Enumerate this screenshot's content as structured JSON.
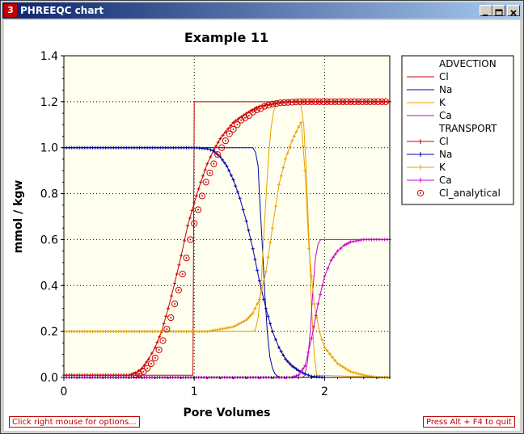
{
  "window": {
    "title": "PHREEQC chart",
    "icon_label": "3",
    "colors": {
      "titlebar": "#0a246a",
      "accent": "#c00000"
    }
  },
  "footer": {
    "options_hint": "Click right mouse for options...",
    "quit_hint": "Press Alt + F4 to quit"
  },
  "legend": {
    "entries": [
      {
        "label": "ADVECTION",
        "kind": "header"
      },
      {
        "label": "Cl",
        "color": "#cc0000",
        "marker": "none"
      },
      {
        "label": "Na",
        "color": "#0000aa",
        "marker": "none"
      },
      {
        "label": "K",
        "color": "#e8a000",
        "marker": "none"
      },
      {
        "label": "Ca",
        "color": "#cc00cc",
        "marker": "none"
      },
      {
        "label": "TRANSPORT",
        "kind": "header"
      },
      {
        "label": "Cl",
        "color": "#cc0000",
        "marker": "plus"
      },
      {
        "label": "Na",
        "color": "#0000aa",
        "marker": "plus"
      },
      {
        "label": "K",
        "color": "#e8a000",
        "marker": "plus"
      },
      {
        "label": "Ca",
        "color": "#cc00cc",
        "marker": "plus"
      },
      {
        "label": "Cl_analytical",
        "color": "#cc0000",
        "marker": "circle"
      }
    ]
  },
  "chart_data": {
    "type": "line",
    "title": "Example 11",
    "xlabel": "Pore Volumes",
    "ylabel": "mmol / kgw",
    "xlim": [
      0,
      2.5
    ],
    "ylim": [
      0,
      1.4
    ],
    "xticks": [
      0,
      1,
      2
    ],
    "yticks": [
      "0.0",
      "0.2",
      "0.4",
      "0.6",
      "0.8",
      "1.0",
      "1.2",
      "1.4"
    ],
    "grid": "dotted",
    "legend_position": "right",
    "background": "#fffff0",
    "series": [
      {
        "name": "Cl",
        "group": "ADVECTION",
        "color": "#cc0000",
        "marker": "none",
        "step": true,
        "x": [
          0,
          0.99,
          1.0,
          2.5
        ],
        "y": [
          0.01,
          0.01,
          1.2,
          1.2
        ]
      },
      {
        "name": "Na",
        "group": "ADVECTION",
        "color": "#0000aa",
        "marker": "none",
        "x": [
          0,
          1.45,
          1.47,
          1.49,
          1.5,
          1.52,
          1.54,
          1.56,
          1.58,
          1.6,
          1.62,
          1.64,
          1.66,
          1.7,
          2.5
        ],
        "y": [
          1.0,
          1.0,
          0.98,
          0.92,
          0.8,
          0.6,
          0.38,
          0.2,
          0.09,
          0.04,
          0.015,
          0.005,
          0.0,
          0.0,
          0.0
        ]
      },
      {
        "name": "K",
        "group": "ADVECTION",
        "color": "#e8a000",
        "marker": "none",
        "x": [
          0,
          1.45,
          1.47,
          1.49,
          1.51,
          1.53,
          1.55,
          1.57,
          1.59,
          1.61,
          1.63,
          1.65,
          1.8,
          1.82,
          1.84,
          1.86,
          1.88,
          1.9,
          1.92,
          1.94,
          2.5
        ],
        "y": [
          0.2,
          0.2,
          0.21,
          0.26,
          0.38,
          0.58,
          0.78,
          0.96,
          1.09,
          1.16,
          1.19,
          1.2,
          1.2,
          1.18,
          1.1,
          0.9,
          0.6,
          0.3,
          0.1,
          0.01,
          0.0
        ]
      },
      {
        "name": "Ca",
        "group": "ADVECTION",
        "color": "#cc00cc",
        "marker": "none",
        "x": [
          0,
          1.83,
          1.85,
          1.87,
          1.89,
          1.91,
          1.93,
          1.95,
          1.97,
          2.0,
          2.5
        ],
        "y": [
          0.0,
          0.0,
          0.01,
          0.07,
          0.2,
          0.38,
          0.52,
          0.58,
          0.6,
          0.6,
          0.6
        ]
      },
      {
        "name": "Cl",
        "group": "TRANSPORT",
        "color": "#cc0000",
        "marker": "plus",
        "x": [
          0,
          0.5,
          0.55,
          0.6,
          0.65,
          0.7,
          0.75,
          0.8,
          0.85,
          0.9,
          0.95,
          1.0,
          1.05,
          1.1,
          1.15,
          1.2,
          1.3,
          1.4,
          1.5,
          1.6,
          1.7,
          1.8,
          2.0,
          2.2,
          2.5
        ],
        "y": [
          0.01,
          0.01,
          0.02,
          0.04,
          0.08,
          0.13,
          0.2,
          0.3,
          0.41,
          0.53,
          0.66,
          0.76,
          0.85,
          0.93,
          0.99,
          1.04,
          1.11,
          1.15,
          1.18,
          1.19,
          1.2,
          1.2,
          1.2,
          1.2,
          1.2
        ]
      },
      {
        "name": "Na",
        "group": "TRANSPORT",
        "color": "#0000aa",
        "marker": "plus",
        "x": [
          0,
          1.0,
          1.1,
          1.15,
          1.2,
          1.25,
          1.3,
          1.35,
          1.4,
          1.45,
          1.5,
          1.55,
          1.6,
          1.65,
          1.7,
          1.75,
          1.8,
          1.85,
          1.9,
          2.0
        ],
        "y": [
          1.0,
          1.0,
          0.995,
          0.985,
          0.96,
          0.92,
          0.86,
          0.78,
          0.68,
          0.56,
          0.42,
          0.3,
          0.2,
          0.13,
          0.08,
          0.05,
          0.03,
          0.015,
          0.005,
          0.0
        ]
      },
      {
        "name": "K",
        "group": "TRANSPORT",
        "color": "#e8a000",
        "marker": "plus",
        "x": [
          0,
          1.0,
          1.1,
          1.2,
          1.3,
          1.4,
          1.45,
          1.5,
          1.55,
          1.6,
          1.65,
          1.7,
          1.75,
          1.8,
          1.82,
          1.85,
          1.88,
          1.92,
          1.96,
          2.0,
          2.1,
          2.2,
          2.3,
          2.4,
          2.5
        ],
        "y": [
          0.2,
          0.2,
          0.2,
          0.21,
          0.22,
          0.25,
          0.28,
          0.34,
          0.46,
          0.65,
          0.84,
          0.95,
          1.03,
          1.09,
          1.11,
          0.9,
          0.56,
          0.32,
          0.2,
          0.13,
          0.06,
          0.025,
          0.01,
          0.0,
          0.0
        ]
      },
      {
        "name": "Ca",
        "group": "TRANSPORT",
        "color": "#cc00cc",
        "marker": "plus",
        "x": [
          0,
          1.75,
          1.8,
          1.85,
          1.9,
          1.95,
          2.0,
          2.05,
          2.1,
          2.15,
          2.2,
          2.3,
          2.4,
          2.5
        ],
        "y": [
          0.0,
          0.0,
          0.01,
          0.05,
          0.17,
          0.32,
          0.44,
          0.51,
          0.55,
          0.575,
          0.59,
          0.6,
          0.6,
          0.6
        ]
      },
      {
        "name": "Cl_analytical",
        "color": "#cc0000",
        "marker": "circle",
        "line": false,
        "x": [
          0.55,
          0.58,
          0.61,
          0.64,
          0.67,
          0.7,
          0.73,
          0.76,
          0.79,
          0.82,
          0.85,
          0.88,
          0.91,
          0.94,
          0.97,
          1.0,
          1.03,
          1.06,
          1.09,
          1.12,
          1.15,
          1.18,
          1.21,
          1.24,
          1.27,
          1.3,
          1.33,
          1.36,
          1.39,
          1.42,
          1.45,
          1.48,
          1.51,
          1.54,
          1.57,
          1.6,
          1.63,
          1.66,
          1.69,
          1.72,
          1.75,
          1.78,
          1.81,
          1.84,
          1.87,
          1.9,
          1.93,
          1.96,
          1.99,
          2.02,
          2.05,
          2.08,
          2.11,
          2.14,
          2.17,
          2.2,
          2.23,
          2.26,
          2.29,
          2.32,
          2.35,
          2.38,
          2.41,
          2.44,
          2.47
        ],
        "y": [
          0.01,
          0.015,
          0.025,
          0.04,
          0.06,
          0.085,
          0.12,
          0.16,
          0.21,
          0.26,
          0.32,
          0.38,
          0.45,
          0.52,
          0.6,
          0.67,
          0.73,
          0.79,
          0.85,
          0.89,
          0.93,
          0.97,
          1.0,
          1.03,
          1.06,
          1.08,
          1.1,
          1.12,
          1.13,
          1.14,
          1.155,
          1.165,
          1.17,
          1.18,
          1.185,
          1.19,
          1.192,
          1.195,
          1.196,
          1.197,
          1.198,
          1.199,
          1.2,
          1.2,
          1.2,
          1.2,
          1.2,
          1.2,
          1.2,
          1.2,
          1.2,
          1.2,
          1.2,
          1.2,
          1.2,
          1.2,
          1.2,
          1.2,
          1.2,
          1.2,
          1.2,
          1.2,
          1.2,
          1.2,
          1.2
        ]
      }
    ]
  }
}
